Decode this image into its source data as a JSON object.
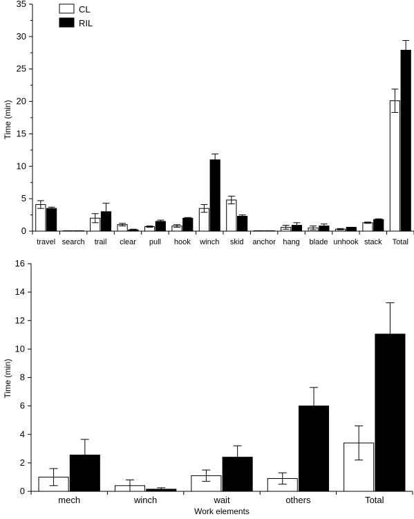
{
  "chart_data": [
    {
      "type": "bar",
      "categories": [
        "travel",
        "search",
        "trail",
        "clear",
        "pull",
        "hook",
        "winch",
        "skid",
        "anchor",
        "hang",
        "blade",
        "unhook",
        "stack",
        "Total"
      ],
      "series": [
        {
          "name": "CL",
          "values": [
            4.1,
            0.05,
            2.0,
            1.0,
            0.7,
            0.8,
            3.5,
            4.8,
            0.05,
            0.6,
            0.5,
            0.3,
            1.3,
            20.1
          ],
          "errors": [
            0.6,
            0.0,
            0.7,
            0.2,
            0.1,
            0.2,
            0.6,
            0.6,
            0.0,
            0.3,
            0.3,
            0.1,
            0.1,
            1.8
          ]
        },
        {
          "name": "RIL",
          "values": [
            3.5,
            0.0,
            3.0,
            0.2,
            1.5,
            2.0,
            11.0,
            2.3,
            0.0,
            0.9,
            0.8,
            0.6,
            1.8,
            27.9
          ],
          "errors": [
            0.2,
            0.0,
            1.3,
            0.1,
            0.2,
            0.1,
            0.9,
            0.2,
            0.0,
            0.4,
            0.3,
            0.0,
            0.1,
            1.5
          ]
        }
      ],
      "ylabel": "Time (min)",
      "xlabel": "",
      "ylim": [
        0,
        35
      ],
      "yticks": [
        "0",
        "5",
        "10",
        "15",
        "20",
        "25",
        "30",
        "35"
      ],
      "legend_placement": "top-left"
    },
    {
      "type": "bar",
      "categories": [
        "mech",
        "winch",
        "wait",
        "others",
        "Total"
      ],
      "series": [
        {
          "name": "CL",
          "values": [
            1.0,
            0.4,
            1.1,
            0.9,
            3.4
          ],
          "errors": [
            0.6,
            0.4,
            0.4,
            0.4,
            1.2
          ]
        },
        {
          "name": "RIL",
          "values": [
            2.55,
            0.15,
            2.4,
            6.0,
            11.05
          ],
          "errors": [
            1.1,
            0.1,
            0.8,
            1.3,
            2.2
          ]
        }
      ],
      "ylabel": "Time (min)",
      "xlabel": "Work elements",
      "ylim": [
        0,
        16
      ],
      "yticks": [
        "0",
        "2",
        "4",
        "6",
        "8",
        "10",
        "12",
        "14",
        "16"
      ]
    }
  ],
  "colors": {
    "CL": "#ffffff",
    "RIL": "#000000"
  }
}
